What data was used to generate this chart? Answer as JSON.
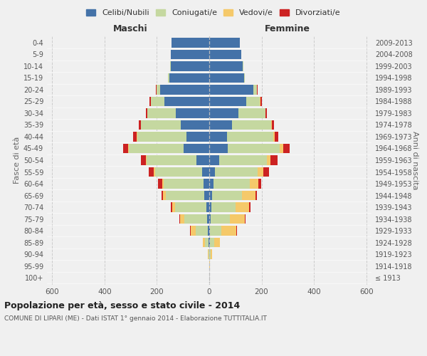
{
  "age_groups": [
    "100+",
    "95-99",
    "90-94",
    "85-89",
    "80-84",
    "75-79",
    "70-74",
    "65-69",
    "60-64",
    "55-59",
    "50-54",
    "45-49",
    "40-44",
    "35-39",
    "30-34",
    "25-29",
    "20-24",
    "15-19",
    "10-14",
    "5-9",
    "0-4"
  ],
  "birth_years": [
    "≤ 1913",
    "1914-1918",
    "1919-1923",
    "1924-1928",
    "1929-1933",
    "1934-1938",
    "1939-1943",
    "1944-1948",
    "1949-1953",
    "1954-1958",
    "1959-1963",
    "1964-1968",
    "1969-1973",
    "1974-1978",
    "1979-1983",
    "1984-1988",
    "1989-1993",
    "1994-1998",
    "1999-2003",
    "2004-2008",
    "2009-2013"
  ],
  "maschi": {
    "celibi": [
      0,
      0,
      1,
      2,
      5,
      8,
      12,
      18,
      22,
      28,
      48,
      98,
      88,
      108,
      128,
      172,
      188,
      153,
      148,
      148,
      143
    ],
    "coniugati": [
      0,
      1,
      3,
      14,
      48,
      88,
      118,
      148,
      152,
      178,
      192,
      208,
      188,
      152,
      108,
      52,
      14,
      4,
      2,
      0,
      0
    ],
    "vedovi": [
      0,
      0,
      2,
      8,
      18,
      15,
      12,
      10,
      5,
      5,
      3,
      3,
      2,
      1,
      0,
      0,
      0,
      0,
      0,
      0,
      0
    ],
    "divorziati": [
      0,
      0,
      0,
      0,
      2,
      3,
      5,
      5,
      18,
      20,
      18,
      20,
      12,
      8,
      5,
      5,
      2,
      0,
      0,
      0,
      0
    ]
  },
  "femmine": {
    "nubili": [
      0,
      0,
      1,
      2,
      4,
      6,
      8,
      12,
      16,
      22,
      38,
      72,
      68,
      88,
      112,
      142,
      168,
      132,
      128,
      122,
      118
    ],
    "coniugate": [
      0,
      1,
      4,
      16,
      42,
      72,
      92,
      112,
      138,
      162,
      182,
      198,
      178,
      148,
      102,
      52,
      14,
      4,
      2,
      0,
      0
    ],
    "vedove": [
      0,
      1,
      5,
      24,
      58,
      58,
      53,
      53,
      33,
      23,
      13,
      13,
      5,
      3,
      2,
      2,
      0,
      0,
      0,
      0,
      0
    ],
    "divorziate": [
      0,
      0,
      0,
      0,
      2,
      3,
      5,
      5,
      12,
      22,
      28,
      23,
      12,
      8,
      5,
      5,
      2,
      0,
      0,
      0,
      0
    ]
  },
  "colors": {
    "celibi": "#4472a8",
    "coniugati": "#c5d8a0",
    "vedovi": "#f5c96a",
    "divorziati": "#cc2222"
  },
  "xlim": 620,
  "title": "Popolazione per età, sesso e stato civile - 2014",
  "subtitle": "COMUNE DI LIPARI (ME) - Dati ISTAT 1° gennaio 2014 - Elaborazione TUTTITALIA.IT",
  "ylabel_left": "Fasce di età",
  "ylabel_right": "Anni di nascita",
  "xlabel_maschi": "Maschi",
  "xlabel_femmine": "Femmine",
  "bg_color": "#f0f0f0"
}
